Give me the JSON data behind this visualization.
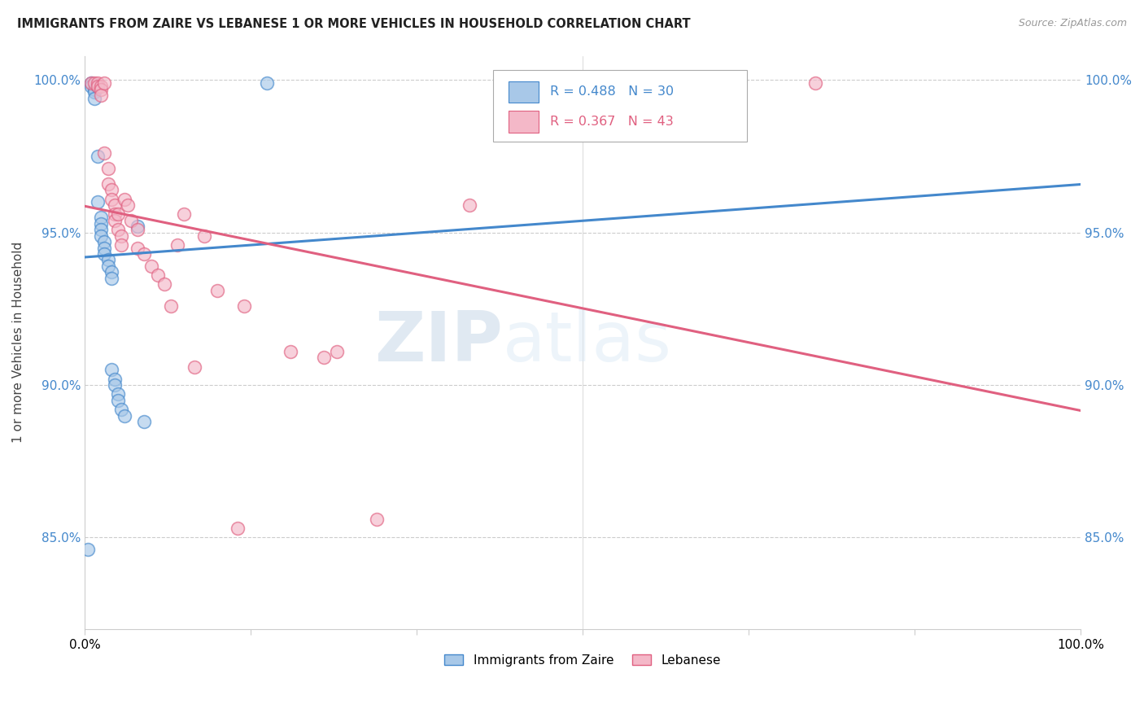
{
  "title": "IMMIGRANTS FROM ZAIRE VS LEBANESE 1 OR MORE VEHICLES IN HOUSEHOLD CORRELATION CHART",
  "source": "Source: ZipAtlas.com",
  "ylabel": "1 or more Vehicles in Household",
  "legend_label1": "Immigrants from Zaire",
  "legend_label2": "Lebanese",
  "R1": 0.488,
  "N1": 30,
  "R2": 0.367,
  "N2": 43,
  "color1": "#a8c8e8",
  "color2": "#f4b8c8",
  "line_color1": "#4488cc",
  "line_color2": "#e06080",
  "xmin": 0.0,
  "xmax": 0.3,
  "ymin": 0.82,
  "ymax": 1.008,
  "yticks": [
    0.85,
    0.9,
    0.95,
    1.0
  ],
  "ytick_labels": [
    "85.0%",
    "90.0%",
    "95.0%",
    "100.0%"
  ],
  "watermark_zip": "ZIP",
  "watermark_atlas": "atlas",
  "zaire_x": [
    0.001,
    0.002,
    0.002,
    0.003,
    0.003,
    0.003,
    0.004,
    0.004,
    0.004,
    0.005,
    0.005,
    0.005,
    0.005,
    0.006,
    0.006,
    0.006,
    0.007,
    0.007,
    0.008,
    0.008,
    0.008,
    0.009,
    0.009,
    0.01,
    0.01,
    0.011,
    0.012,
    0.016,
    0.018,
    0.055
  ],
  "zaire_y": [
    0.846,
    0.999,
    0.998,
    0.997,
    0.996,
    0.994,
    0.998,
    0.975,
    0.96,
    0.955,
    0.953,
    0.951,
    0.949,
    0.947,
    0.945,
    0.943,
    0.941,
    0.939,
    0.937,
    0.935,
    0.905,
    0.902,
    0.9,
    0.897,
    0.895,
    0.892,
    0.89,
    0.952,
    0.888,
    0.999
  ],
  "lebanese_x": [
    0.002,
    0.003,
    0.004,
    0.004,
    0.005,
    0.005,
    0.005,
    0.006,
    0.006,
    0.007,
    0.007,
    0.008,
    0.008,
    0.009,
    0.009,
    0.009,
    0.01,
    0.01,
    0.011,
    0.011,
    0.012,
    0.013,
    0.014,
    0.016,
    0.016,
    0.018,
    0.02,
    0.022,
    0.024,
    0.026,
    0.028,
    0.03,
    0.033,
    0.036,
    0.04,
    0.046,
    0.048,
    0.062,
    0.072,
    0.076,
    0.088,
    0.116,
    0.22
  ],
  "lebanese_y": [
    0.999,
    0.999,
    0.999,
    0.998,
    0.998,
    0.997,
    0.995,
    0.999,
    0.976,
    0.971,
    0.966,
    0.964,
    0.961,
    0.959,
    0.956,
    0.954,
    0.956,
    0.951,
    0.949,
    0.946,
    0.961,
    0.959,
    0.954,
    0.951,
    0.945,
    0.943,
    0.939,
    0.936,
    0.933,
    0.926,
    0.946,
    0.956,
    0.906,
    0.949,
    0.931,
    0.853,
    0.926,
    0.911,
    0.909,
    0.911,
    0.856,
    0.959,
    0.999
  ]
}
